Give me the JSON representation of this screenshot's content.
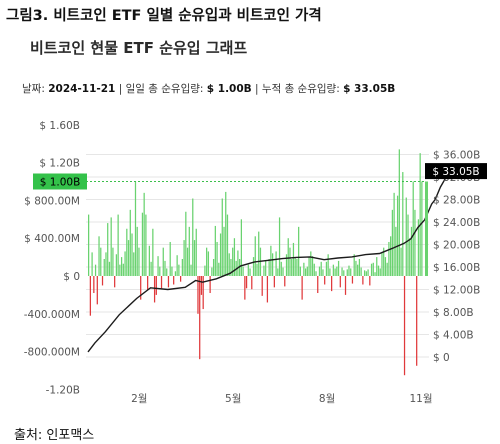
{
  "figure_title": "그림3. 비트코인 ETF 일별 순유입과 비트코인 가격",
  "chart_title": "비트코인 현물 ETF 순유입 그래프",
  "info": {
    "date_label": "날짜:",
    "date": "2024-11-21",
    "daily_label": "일일 총 순유입량:",
    "daily_value": "$ 1.00B",
    "cum_label": "누적 총 순유입량:",
    "cum_value": "$ 33.05B",
    "separator": "|"
  },
  "source": "출처: 인포맥스",
  "colors": {
    "inflow": "#69d26f",
    "outflow": "#e0393b",
    "line": "#1c1c1c",
    "badge_green": "#34c24a",
    "badge_black": "#000000",
    "grid": "#e6e6e6",
    "dotted": "#3cbf4c"
  },
  "chart_data": {
    "type": "bar+line",
    "title": "비트코인 현물 ETF 순유입 그래프",
    "x_ticks": [
      "2월",
      "5월",
      "8월",
      "11월"
    ],
    "left_axis": {
      "ticks": [
        "$ 1.60B",
        "$ 1.20B",
        "$ 800.00M",
        "$ 400.00M",
        "$ 0",
        "-400.000M",
        "-800.000M",
        "-1.20B"
      ],
      "values": [
        1600,
        1200,
        800,
        400,
        0,
        -400,
        -800,
        -1200
      ],
      "unit": "M USD"
    },
    "right_axis": {
      "ticks": [
        "$ 36.00B",
        "$ 32.00B",
        "$ 28.00B",
        "$ 24.00B",
        "$ 20.00B",
        "$ 16.00B",
        "$ 12.00B",
        "$ 8.00B",
        "$ 4.00B",
        "$ 0"
      ],
      "values": [
        36,
        32,
        28,
        24,
        20,
        16,
        12,
        8,
        4,
        0
      ],
      "unit": "B USD"
    },
    "current_daily_label": "$ 1.00B",
    "current_daily_value": 1000,
    "current_cum_label": "$ 33.05B",
    "current_cum_value": 33.05,
    "daily_flows_m": [
      650,
      -420,
      250,
      -180,
      120,
      -300,
      420,
      300,
      -100,
      180,
      250,
      560,
      150,
      620,
      300,
      -120,
      230,
      650,
      120,
      200,
      130,
      260,
      500,
      380,
      700,
      450,
      250,
      1000,
      520,
      300,
      -250,
      670,
      880,
      650,
      -150,
      320,
      150,
      500,
      -280,
      -200,
      210,
      100,
      -130,
      300,
      160,
      80,
      -120,
      360,
      100,
      -90,
      50,
      220,
      120,
      -60,
      180,
      380,
      680,
      300,
      520,
      120,
      820,
      380,
      500,
      -400,
      -880,
      -200,
      -350,
      110,
      300,
      260,
      -180,
      90,
      180,
      530,
      360,
      140,
      450,
      820,
      520,
      890,
      650,
      240,
      180,
      300,
      400,
      160,
      270,
      180,
      600,
      100,
      -250,
      -130,
      120,
      80,
      -140,
      200,
      420,
      130,
      470,
      300,
      -210,
      110,
      160,
      -280,
      180,
      320,
      240,
      -120,
      260,
      80,
      620,
      150,
      90,
      -110,
      230,
      400,
      300,
      180,
      350,
      200,
      180,
      520,
      100,
      -250,
      140,
      80,
      100,
      200,
      260,
      210,
      130,
      50,
      -180,
      100,
      150,
      70,
      -90,
      150,
      230,
      80,
      -160,
      120,
      80,
      100,
      160,
      -120,
      90,
      60,
      -200,
      70,
      110,
      80,
      -80,
      230,
      160,
      120,
      180,
      90,
      -90,
      60,
      50,
      70,
      -100,
      130,
      140,
      40,
      200,
      110,
      80,
      250,
      300,
      200,
      140,
      360,
      420,
      700,
      880,
      520,
      850,
      1340,
      300,
      1100,
      -1050,
      830,
      650,
      400,
      520,
      1000,
      700,
      -950,
      600,
      1300,
      1000
    ],
    "cumulative_b_knots": [
      [
        0,
        0.9
      ],
      [
        4,
        2.5
      ],
      [
        10,
        4.5
      ],
      [
        18,
        7.5
      ],
      [
        28,
        10.4
      ],
      [
        36,
        12.3
      ],
      [
        46,
        12.0
      ],
      [
        56,
        12.4
      ],
      [
        62,
        13.6
      ],
      [
        66,
        13.3
      ],
      [
        74,
        13.9
      ],
      [
        82,
        14.9
      ],
      [
        88,
        16.2
      ],
      [
        96,
        16.9
      ],
      [
        104,
        17.2
      ],
      [
        112,
        17.5
      ],
      [
        120,
        17.7
      ],
      [
        128,
        17.8
      ],
      [
        136,
        17.3
      ],
      [
        144,
        17.6
      ],
      [
        152,
        17.8
      ],
      [
        160,
        18.2
      ],
      [
        168,
        18.4
      ],
      [
        176,
        19.4
      ],
      [
        182,
        20.2
      ],
      [
        186,
        21.0
      ],
      [
        190,
        23.0
      ],
      [
        194,
        24.4
      ],
      [
        198,
        27.2
      ],
      [
        200,
        28.0
      ],
      [
        203,
        30.2
      ],
      [
        206,
        31.8
      ],
      [
        208,
        33.05
      ]
    ]
  }
}
